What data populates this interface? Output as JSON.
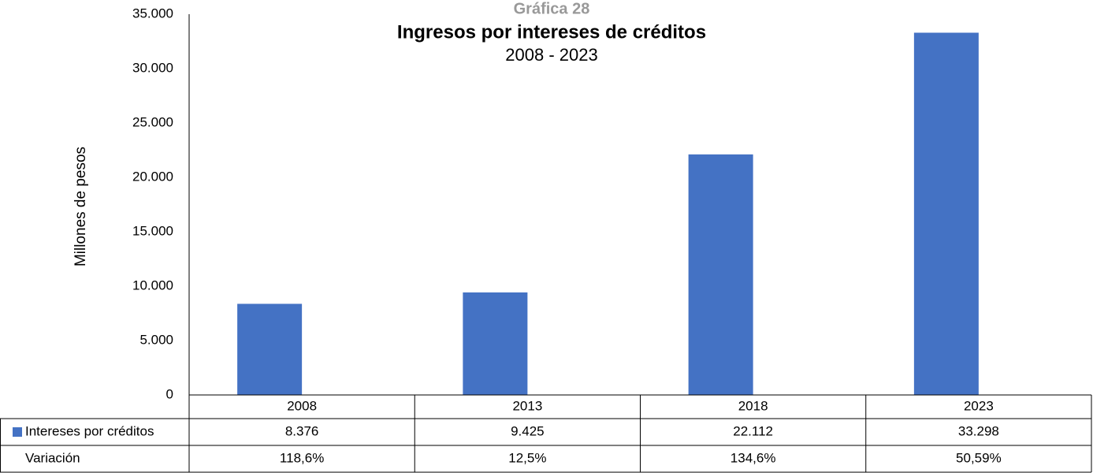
{
  "chart_data": {
    "type": "bar",
    "supertitle": "Gráfica 28",
    "title": "Ingresos por intereses de créditos",
    "subtitle": "2008 - 2023",
    "y_label": "Millones de pesos",
    "categories": [
      "2008",
      "2013",
      "2018",
      "2023"
    ],
    "series": [
      {
        "name": "Intereses por créditos",
        "color": "#4472c4",
        "values": [
          8376,
          9425,
          22112,
          33298
        ],
        "value_labels": [
          "8.376",
          "9.425",
          "22.112",
          "33.298"
        ]
      }
    ],
    "variation": {
      "name": "Variación",
      "values": [
        118.6,
        12.5,
        134.6,
        50.59
      ],
      "value_labels": [
        "118,6%",
        "12,5%",
        "134,6%",
        "50,59%"
      ]
    },
    "ylim": [
      0,
      35000
    ],
    "yticks": [
      0,
      {
        "value": 5000,
        "label": "5.000"
      },
      {
        "value": 10000,
        "label": "10.000"
      },
      {
        "value": 15000,
        "label": "15.000"
      },
      {
        "value": 20000,
        "label": "20.000"
      },
      {
        "value": 25000,
        "label": "25.000"
      },
      {
        "value": 30000,
        "label": "30.000"
      },
      {
        "value": 35000,
        "label": "35.000"
      }
    ],
    "grid": false
  }
}
